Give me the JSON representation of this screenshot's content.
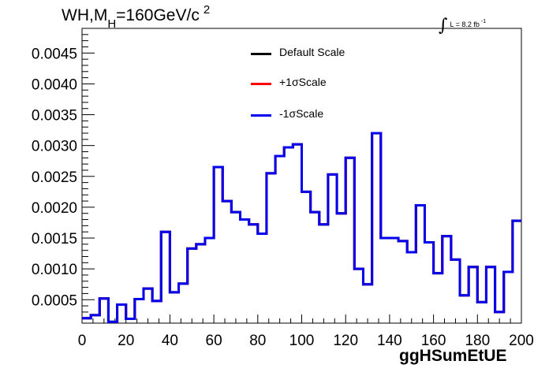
{
  "title": {
    "main": "WH,M",
    "subscript": "H",
    "rest": "=160GeV/c",
    "superscript": "2"
  },
  "luminosity": {
    "integral": "∫",
    "text": "L = 8.2 fb",
    "superscript": "-1"
  },
  "colors": {
    "default": "#000000",
    "plus": "#ff0000",
    "minus": "#0000ee",
    "frame": "#000000"
  },
  "chart_data": {
    "type": "line",
    "step": true,
    "xlabel": "ggHSumEtUE",
    "ylabel": "",
    "xlim": [
      0,
      200
    ],
    "ylim": [
      0.00012,
      0.0049
    ],
    "xticks": [
      0,
      20,
      40,
      60,
      80,
      100,
      120,
      140,
      160,
      180,
      200
    ],
    "yticks": [
      0.0005,
      0.001,
      0.0015,
      0.002,
      0.0025,
      0.003,
      0.0035,
      0.004,
      0.0045
    ],
    "ytick_labels": [
      "0.0005",
      "0.0010",
      "0.0015",
      "0.0020",
      "0.0025",
      "0.0030",
      "0.0035",
      "0.0040",
      "0.0045"
    ],
    "bin_edges": [
      0,
      4,
      8,
      12,
      16,
      20,
      24,
      28,
      32,
      36,
      40,
      44,
      48,
      52,
      56,
      60,
      64,
      68,
      72,
      76,
      80,
      84,
      88,
      92,
      96,
      100,
      104,
      108,
      112,
      116,
      120,
      124,
      128,
      132,
      136,
      140,
      144,
      148,
      152,
      156,
      160,
      164,
      168,
      172,
      176,
      180,
      184,
      188,
      192,
      196,
      200
    ],
    "series": [
      {
        "name": "Default Scale",
        "color": "#000000",
        "values": [
          0.0002,
          0.00025,
          0.00052,
          0.00014,
          0.00042,
          0.00019,
          0.00051,
          0.00068,
          0.00048,
          0.0016,
          0.00062,
          0.00076,
          0.00133,
          0.0014,
          0.0015,
          0.00265,
          0.0021,
          0.00192,
          0.0018,
          0.00172,
          0.00157,
          0.00255,
          0.00283,
          0.00297,
          0.00302,
          0.00225,
          0.00192,
          0.00172,
          0.00253,
          0.0019,
          0.0028,
          0.001,
          0.00075,
          0.0032,
          0.0015,
          0.0015,
          0.00145,
          0.00127,
          0.00203,
          0.00143,
          0.00093,
          0.00153,
          0.00115,
          0.00057,
          0.00103,
          0.00046,
          0.00103,
          0.0003,
          0.00095,
          0.00178
        ]
      },
      {
        "name": "+1σScale",
        "color": "#ff0000",
        "values": [
          0.0002,
          0.00025,
          0.00052,
          0.00014,
          0.00042,
          0.00019,
          0.00051,
          0.00068,
          0.00048,
          0.0016,
          0.00062,
          0.00076,
          0.00133,
          0.0014,
          0.0015,
          0.00265,
          0.0021,
          0.00192,
          0.0018,
          0.00172,
          0.00157,
          0.00255,
          0.00283,
          0.00297,
          0.00302,
          0.00225,
          0.00192,
          0.00172,
          0.00253,
          0.0019,
          0.0028,
          0.001,
          0.00075,
          0.0032,
          0.0015,
          0.0015,
          0.00145,
          0.00127,
          0.00203,
          0.00143,
          0.00093,
          0.00153,
          0.00115,
          0.00057,
          0.00103,
          0.00046,
          0.00103,
          0.0003,
          0.00095,
          0.00178
        ]
      },
      {
        "name": "-1σScale",
        "color": "#0000ee",
        "values": [
          0.0002,
          0.00025,
          0.00052,
          0.00014,
          0.00042,
          0.00019,
          0.00051,
          0.00068,
          0.00048,
          0.0016,
          0.00062,
          0.00076,
          0.00133,
          0.0014,
          0.0015,
          0.00265,
          0.0021,
          0.00192,
          0.0018,
          0.00172,
          0.00157,
          0.00255,
          0.00283,
          0.00297,
          0.00302,
          0.00225,
          0.00192,
          0.00172,
          0.00253,
          0.0019,
          0.0028,
          0.001,
          0.00075,
          0.0032,
          0.0015,
          0.0015,
          0.00145,
          0.00127,
          0.00203,
          0.00143,
          0.00093,
          0.00153,
          0.00115,
          0.00057,
          0.00103,
          0.00046,
          0.00103,
          0.0003,
          0.00095,
          0.00178
        ]
      }
    ],
    "legend_position": "top-center",
    "grid": false
  }
}
